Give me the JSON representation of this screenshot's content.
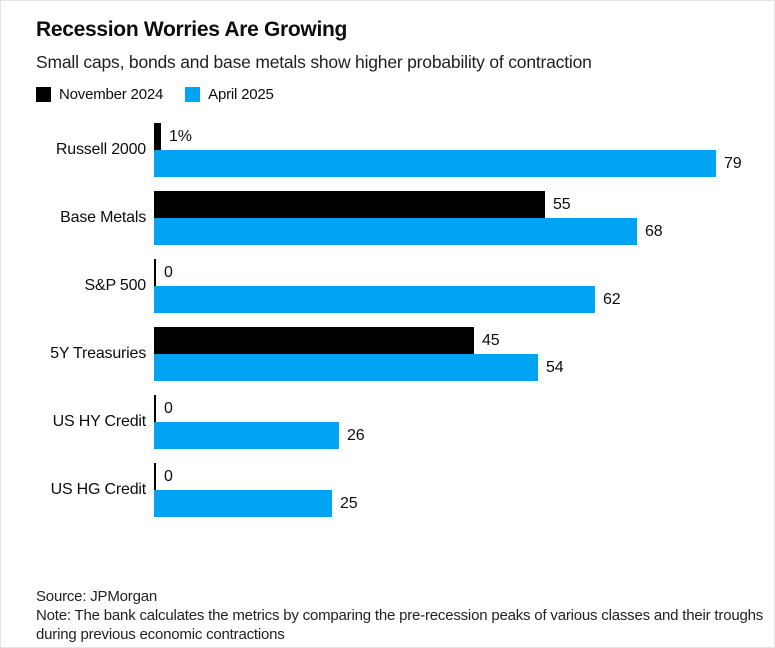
{
  "header": {
    "title": "Recession Worries Are Growing",
    "subtitle": "Small caps, bonds and base metals show higher probability of contraction"
  },
  "legend": [
    {
      "label": "November 2024",
      "color": "#000000"
    },
    {
      "label": "April 2025",
      "color": "#00a3f2"
    }
  ],
  "chart_data": {
    "type": "bar",
    "orientation": "horizontal",
    "title": "Recession Worries Are Growing",
    "subtitle": "Small caps, bonds and base metals show higher probability of contraction",
    "unit": "probability of contraction, %",
    "xlim": [
      0,
      84
    ],
    "grid": false,
    "legend_position": "top",
    "categories": [
      "Russell 2000",
      "Base Metals",
      "S&P 500",
      "5Y Treasuries",
      "US HY Credit",
      "US HG Credit"
    ],
    "series": [
      {
        "name": "November 2024",
        "color": "#000000",
        "values": [
          1,
          55,
          0,
          45,
          0,
          0
        ],
        "value_labels": [
          "1%",
          "55",
          "0",
          "45",
          "0",
          "0"
        ]
      },
      {
        "name": "April 2025",
        "color": "#00a3f2",
        "values": [
          79,
          68,
          62,
          54,
          26,
          25
        ],
        "value_labels": [
          "79",
          "68",
          "62",
          "54",
          "26",
          "25"
        ]
      }
    ]
  },
  "footer": {
    "source": "Source: JPMorgan",
    "note": "Note: The bank calculates the metrics by comparing the pre-recession peaks of various classes and their troughs during previous economic contractions"
  }
}
